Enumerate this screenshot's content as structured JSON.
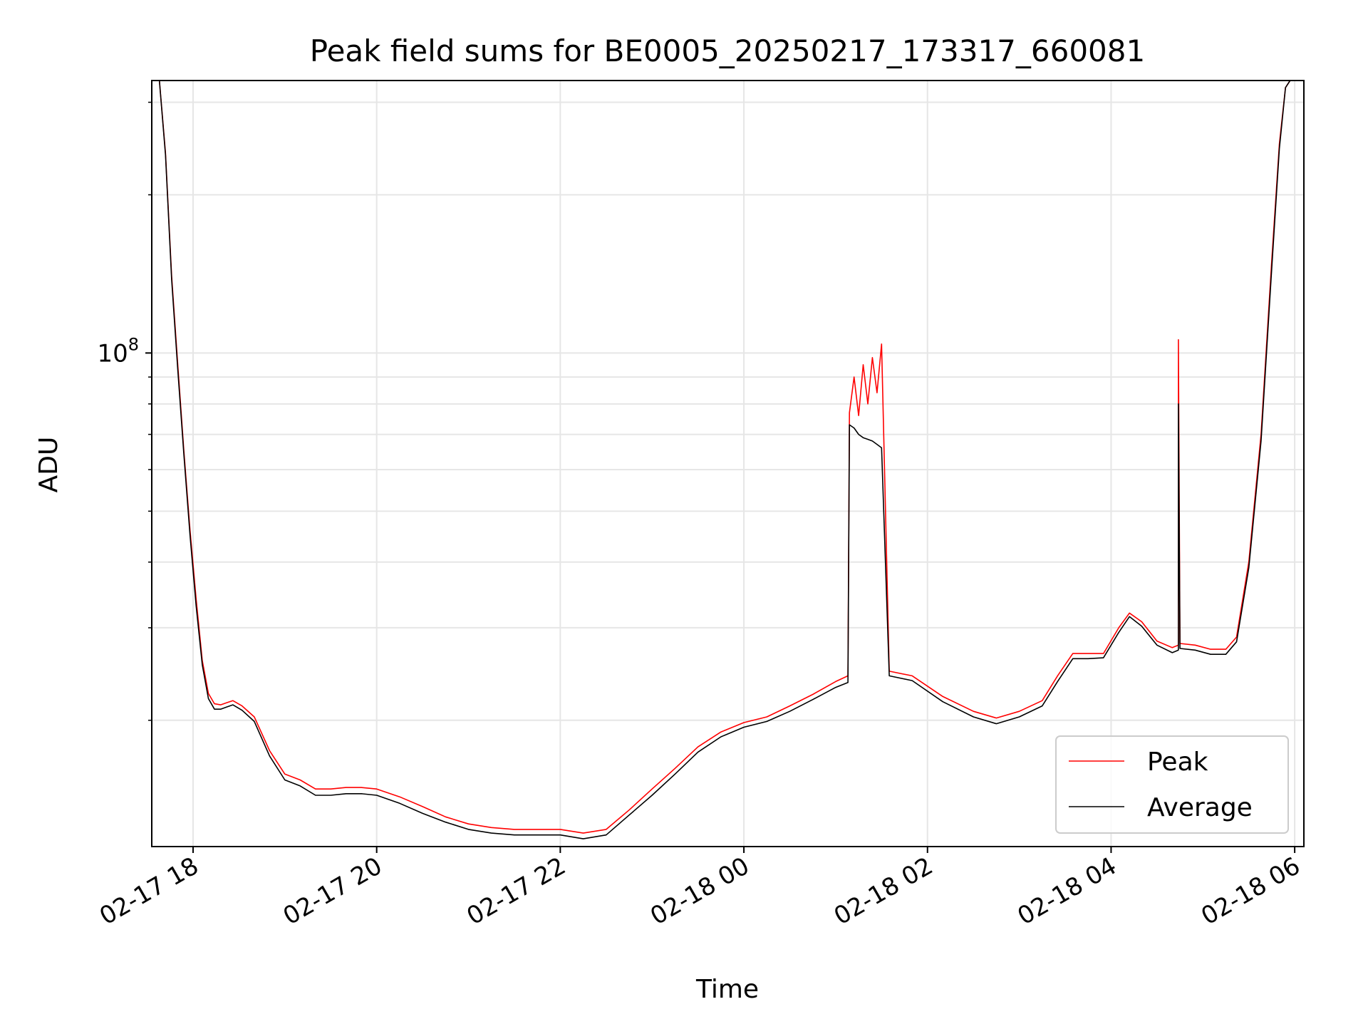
{
  "chart_data": {
    "type": "line",
    "title": "Peak field sums for BE0005_20250217_173317_660081",
    "xlabel": "Time",
    "ylabel": "ADU",
    "x_scale": "time",
    "y_scale": "log",
    "xlim": [
      "2025-02-17 17:33",
      "2025-02-18 06:06"
    ],
    "ylim": [
      11500000,
      330000000
    ],
    "x_ticks": [
      {
        "value": "2025-02-17 18:00",
        "label": "02-17 18"
      },
      {
        "value": "2025-02-17 20:00",
        "label": "02-17 20"
      },
      {
        "value": "2025-02-17 22:00",
        "label": "02-17 22"
      },
      {
        "value": "2025-02-18 00:00",
        "label": "02-18 00"
      },
      {
        "value": "2025-02-18 02:00",
        "label": "02-18 02"
      },
      {
        "value": "2025-02-18 04:00",
        "label": "02-18 04"
      },
      {
        "value": "2025-02-18 06:00",
        "label": "02-18 06"
      }
    ],
    "y_major_ticks": [
      {
        "value": 100000000,
        "base": "10",
        "exp": "8"
      }
    ],
    "y_minor_ticks": [
      20000000,
      30000000,
      40000000,
      50000000,
      60000000,
      70000000,
      80000000,
      90000000,
      200000000,
      300000000
    ],
    "grid": true,
    "legend_position": "lower-right",
    "series": [
      {
        "name": "Peak",
        "color": "#ff0000",
        "x": [
          "2025-02-17 17:38",
          "2025-02-17 17:42",
          "2025-02-17 17:46",
          "2025-02-17 17:50",
          "2025-02-17 17:54",
          "2025-02-17 17:58",
          "2025-02-17 18:02",
          "2025-02-17 18:06",
          "2025-02-17 18:10",
          "2025-02-17 18:14",
          "2025-02-17 18:18",
          "2025-02-17 18:22",
          "2025-02-17 18:26",
          "2025-02-17 18:32",
          "2025-02-17 18:40",
          "2025-02-17 18:50",
          "2025-02-17 19:00",
          "2025-02-17 19:10",
          "2025-02-17 19:20",
          "2025-02-17 19:30",
          "2025-02-17 19:40",
          "2025-02-17 19:50",
          "2025-02-17 20:00",
          "2025-02-17 20:15",
          "2025-02-17 20:30",
          "2025-02-17 20:45",
          "2025-02-17 21:00",
          "2025-02-17 21:15",
          "2025-02-17 21:30",
          "2025-02-17 21:45",
          "2025-02-17 22:00",
          "2025-02-17 22:15",
          "2025-02-17 22:30",
          "2025-02-17 22:45",
          "2025-02-17 23:00",
          "2025-02-17 23:15",
          "2025-02-17 23:30",
          "2025-02-17 23:45",
          "2025-02-18 00:00",
          "2025-02-18 00:15",
          "2025-02-18 00:30",
          "2025-02-18 00:45",
          "2025-02-18 01:00",
          "2025-02-18 01:08",
          "2025-02-18 01:09",
          "2025-02-18 01:12",
          "2025-02-18 01:15",
          "2025-02-18 01:18",
          "2025-02-18 01:21",
          "2025-02-18 01:24",
          "2025-02-18 01:27",
          "2025-02-18 01:30",
          "2025-02-18 01:35",
          "2025-02-18 01:50",
          "2025-02-18 02:10",
          "2025-02-18 02:30",
          "2025-02-18 02:45",
          "2025-02-18 03:00",
          "2025-02-18 03:15",
          "2025-02-18 03:25",
          "2025-02-18 03:35",
          "2025-02-18 03:45",
          "2025-02-18 03:55",
          "2025-02-18 04:05",
          "2025-02-18 04:12",
          "2025-02-18 04:20",
          "2025-02-18 04:30",
          "2025-02-18 04:40",
          "2025-02-18 04:44",
          "2025-02-18 04:44",
          "2025-02-18 04:45",
          "2025-02-18 04:55",
          "2025-02-18 05:05",
          "2025-02-18 05:15",
          "2025-02-18 05:22",
          "2025-02-18 05:30",
          "2025-02-18 05:38",
          "2025-02-18 05:45",
          "2025-02-18 05:50",
          "2025-02-18 05:54",
          "2025-02-18 05:57",
          "2025-02-18 06:00"
        ],
        "y": [
          330000000,
          240000000,
          140000000,
          95000000,
          65000000,
          46000000,
          34000000,
          26000000,
          22500000,
          21500000,
          21400000,
          21600000,
          21800000,
          21300000,
          20300000,
          17500000,
          15800000,
          15400000,
          14800000,
          14800000,
          14900000,
          14900000,
          14800000,
          14300000,
          13700000,
          13100000,
          12700000,
          12500000,
          12400000,
          12400000,
          12400000,
          12200000,
          12400000,
          13500000,
          14800000,
          16200000,
          17800000,
          19000000,
          19800000,
          20300000,
          21300000,
          22400000,
          23700000,
          24300000,
          77000000,
          90000000,
          76000000,
          95000000,
          80000000,
          98000000,
          84000000,
          104000000,
          24800000,
          24300000,
          22200000,
          20800000,
          20200000,
          20800000,
          21800000,
          24300000,
          26800000,
          26800000,
          26800000,
          30000000,
          32000000,
          30800000,
          28300000,
          27500000,
          27800000,
          106000000,
          28000000,
          27800000,
          27300000,
          27300000,
          28800000,
          40000000,
          70000000,
          150000000,
          250000000,
          320000000,
          330000000,
          330000000
        ]
      },
      {
        "name": "Average",
        "color": "#000000",
        "x": [
          "2025-02-17 17:38",
          "2025-02-17 17:42",
          "2025-02-17 17:46",
          "2025-02-17 17:50",
          "2025-02-17 17:54",
          "2025-02-17 17:58",
          "2025-02-17 18:02",
          "2025-02-17 18:06",
          "2025-02-17 18:10",
          "2025-02-17 18:14",
          "2025-02-17 18:18",
          "2025-02-17 18:22",
          "2025-02-17 18:26",
          "2025-02-17 18:32",
          "2025-02-17 18:40",
          "2025-02-17 18:50",
          "2025-02-17 19:00",
          "2025-02-17 19:10",
          "2025-02-17 19:20",
          "2025-02-17 19:30",
          "2025-02-17 19:40",
          "2025-02-17 19:50",
          "2025-02-17 20:00",
          "2025-02-17 20:15",
          "2025-02-17 20:30",
          "2025-02-17 20:45",
          "2025-02-17 21:00",
          "2025-02-17 21:15",
          "2025-02-17 21:30",
          "2025-02-17 21:45",
          "2025-02-17 22:00",
          "2025-02-17 22:15",
          "2025-02-17 22:30",
          "2025-02-17 22:45",
          "2025-02-17 23:00",
          "2025-02-17 23:15",
          "2025-02-17 23:30",
          "2025-02-17 23:45",
          "2025-02-18 00:00",
          "2025-02-18 00:15",
          "2025-02-18 00:30",
          "2025-02-18 00:45",
          "2025-02-18 01:00",
          "2025-02-18 01:08",
          "2025-02-18 01:09",
          "2025-02-18 01:12",
          "2025-02-18 01:15",
          "2025-02-18 01:18",
          "2025-02-18 01:21",
          "2025-02-18 01:24",
          "2025-02-18 01:27",
          "2025-02-18 01:30",
          "2025-02-18 01:35",
          "2025-02-18 01:50",
          "2025-02-18 02:10",
          "2025-02-18 02:30",
          "2025-02-18 02:45",
          "2025-02-18 03:00",
          "2025-02-18 03:15",
          "2025-02-18 03:25",
          "2025-02-18 03:35",
          "2025-02-18 03:45",
          "2025-02-18 03:55",
          "2025-02-18 04:05",
          "2025-02-18 04:12",
          "2025-02-18 04:20",
          "2025-02-18 04:30",
          "2025-02-18 04:40",
          "2025-02-18 04:44",
          "2025-02-18 04:44",
          "2025-02-18 04:45",
          "2025-02-18 04:55",
          "2025-02-18 05:05",
          "2025-02-18 05:15",
          "2025-02-18 05:22",
          "2025-02-18 05:30",
          "2025-02-18 05:38",
          "2025-02-18 05:45",
          "2025-02-18 05:50",
          "2025-02-18 05:54",
          "2025-02-18 05:57",
          "2025-02-18 06:00"
        ],
        "y": [
          330000000,
          238000000,
          138000000,
          93000000,
          64000000,
          45000000,
          33000000,
          25500000,
          22000000,
          21000000,
          21000000,
          21200000,
          21400000,
          20900000,
          19900000,
          17100000,
          15400000,
          15000000,
          14400000,
          14400000,
          14500000,
          14500000,
          14400000,
          13900000,
          13300000,
          12800000,
          12400000,
          12200000,
          12100000,
          12100000,
          12100000,
          11900000,
          12100000,
          13200000,
          14400000,
          15800000,
          17400000,
          18600000,
          19400000,
          19900000,
          20800000,
          21900000,
          23100000,
          23600000,
          73000000,
          72000000,
          70000000,
          69000000,
          68500000,
          68000000,
          67000000,
          66000000,
          24300000,
          23800000,
          21700000,
          20300000,
          19700000,
          20300000,
          21300000,
          23700000,
          26200000,
          26200000,
          26300000,
          29400000,
          31500000,
          30200000,
          27800000,
          26900000,
          27200000,
          80000000,
          27400000,
          27200000,
          26700000,
          26700000,
          28200000,
          39000000,
          68000000,
          145000000,
          245000000,
          320000000,
          330000000,
          330000000
        ]
      }
    ]
  }
}
